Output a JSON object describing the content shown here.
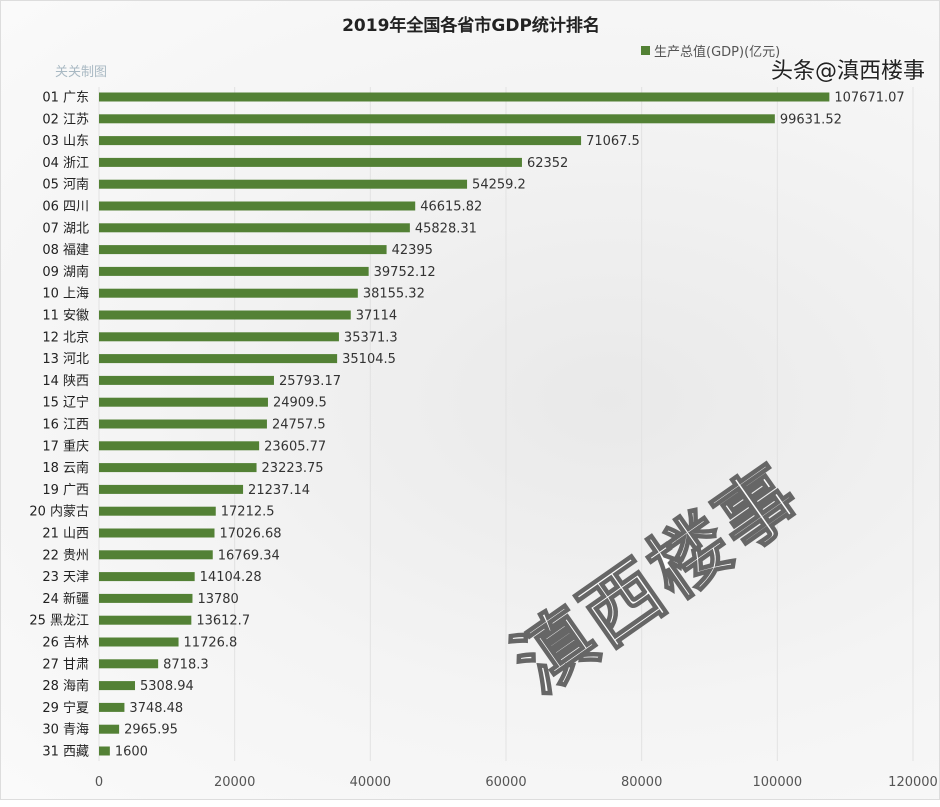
{
  "chart_data": {
    "type": "bar",
    "orientation": "horizontal",
    "title": "2019年全国各省市GDP统计排名",
    "legend": "生产总值(GDP)(亿元)",
    "legend_position": "top-right",
    "maker": "关关制图",
    "watermark": "滇西楼事",
    "credit": "头条@滇西楼事",
    "color": "#538135",
    "xlim": [
      0,
      120000
    ],
    "xticks": [
      "0",
      "20000",
      "40000",
      "60000",
      "80000",
      "100000",
      "120000"
    ],
    "categories": [
      "01 广东",
      "02 江苏",
      "03 山东",
      "04 浙江",
      "05 河南",
      "06 四川",
      "07 湖北",
      "08 福建",
      "09 湖南",
      "10 上海",
      "11 安徽",
      "12 北京",
      "13 河北",
      "14 陕西",
      "15 辽宁",
      "16 江西",
      "17 重庆",
      "18 云南",
      "19 广西",
      "20 内蒙古",
      "21 山西",
      "22 贵州",
      "23 天津",
      "24 新疆",
      "25 黑龙江",
      "26 吉林",
      "27 甘肃",
      "28 海南",
      "29 宁夏",
      "30 青海",
      "31 西藏"
    ],
    "values": [
      107671.07,
      99631.52,
      71067.5,
      62352,
      54259.2,
      46615.82,
      45828.31,
      42395,
      39752.12,
      38155.32,
      37114,
      35371.3,
      35104.5,
      25793.17,
      24909.5,
      24757.5,
      23605.77,
      23223.75,
      21237.14,
      17212.5,
      17026.68,
      16769.34,
      14104.28,
      13780,
      13612.7,
      11726.8,
      8718.3,
      5308.94,
      3748.48,
      2965.95,
      1600
    ]
  }
}
